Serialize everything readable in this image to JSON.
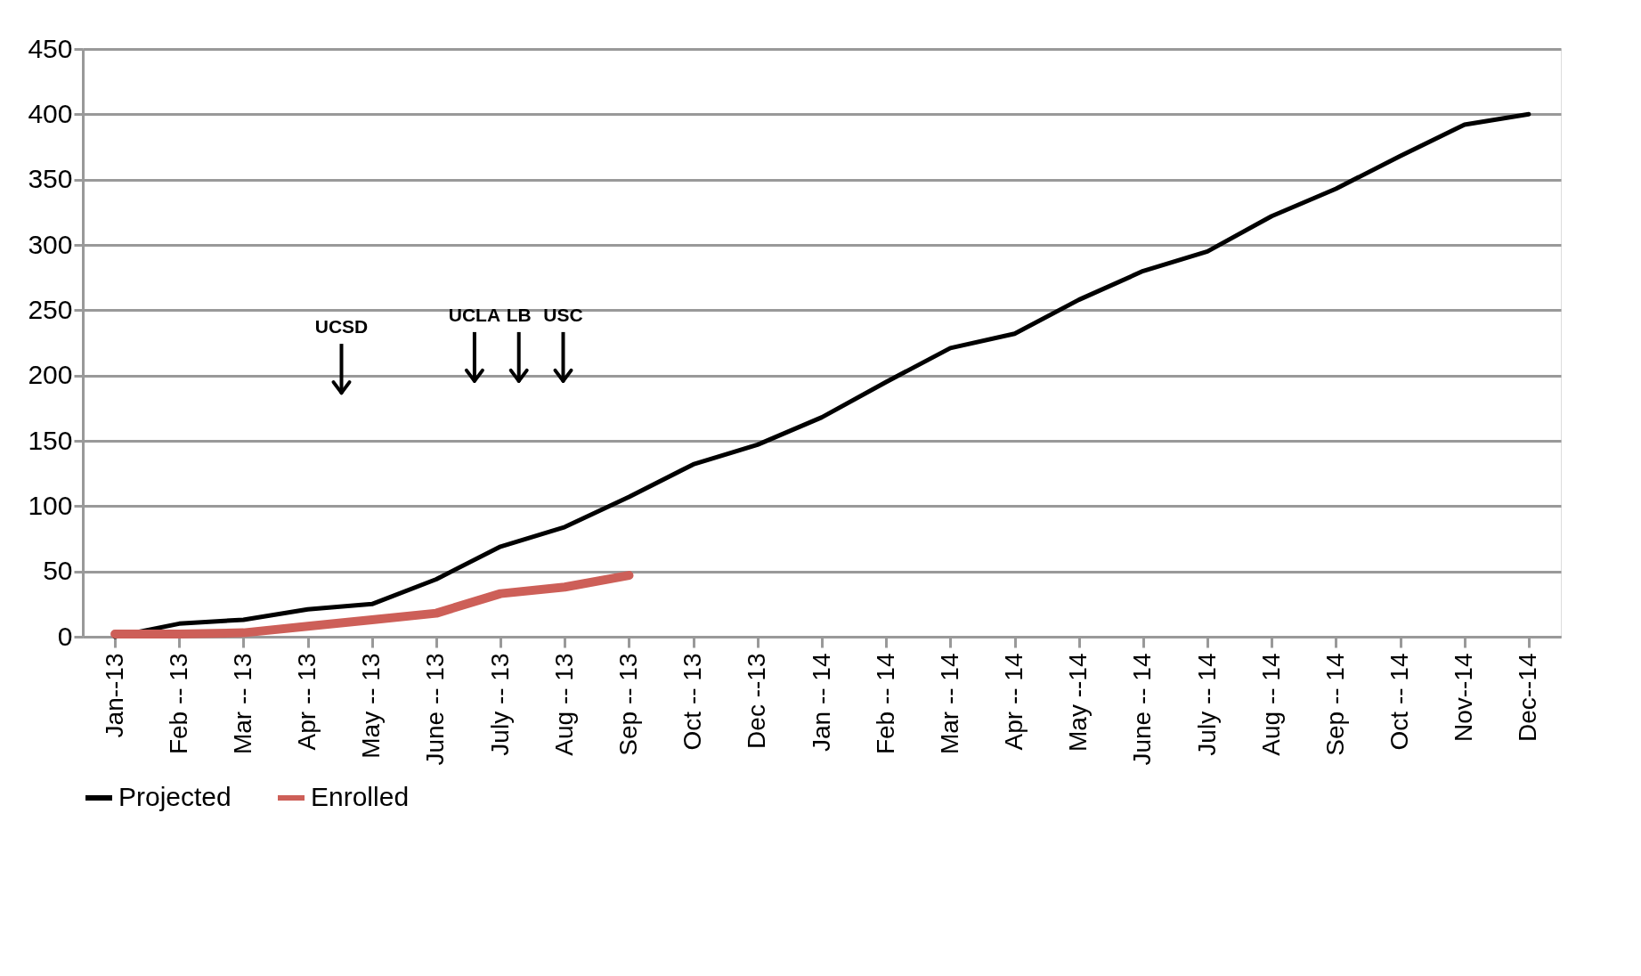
{
  "chart_data": {
    "type": "line",
    "categories": [
      "Jan--13",
      "Feb -- 13",
      "Mar -- 13",
      "Apr -- 13",
      "May -- 13",
      "June -- 13",
      "July -- 13",
      "Aug -- 13",
      "Sep -- 13",
      "Oct -- 13",
      "Dec --13",
      "Jan -- 14",
      "Feb -- 14",
      "Mar -- 14",
      "Apr -- 14",
      "May --14",
      "June -- 14",
      "July -- 14",
      "Aug -- 14",
      "Sep -- 14",
      "Oct -- 14",
      "Nov--14",
      "Dec--14"
    ],
    "series": [
      {
        "name": "Projected",
        "color": "#000000",
        "values": [
          0,
          10,
          13,
          21,
          25,
          44,
          69,
          84,
          107,
          132,
          147,
          168,
          195,
          221,
          232,
          258,
          280,
          295,
          322,
          343,
          368,
          392,
          400
        ]
      },
      {
        "name": "Enrolled",
        "color": "#cd5f58",
        "values": [
          2,
          2,
          3,
          8,
          13,
          18,
          33,
          38,
          47,
          null,
          null,
          null,
          null,
          null,
          null,
          null,
          null,
          null,
          null,
          null,
          null,
          null,
          null
        ]
      }
    ],
    "annotations": [
      "UCSD",
      "UCLA",
      "LB",
      "USC"
    ],
    "ylim": [
      0,
      450
    ],
    "yticks": [
      0,
      50,
      100,
      150,
      200,
      250,
      300,
      350,
      400,
      450
    ],
    "grid": "y",
    "legend": "bottom",
    "line_style": "solid",
    "marker": "none"
  }
}
